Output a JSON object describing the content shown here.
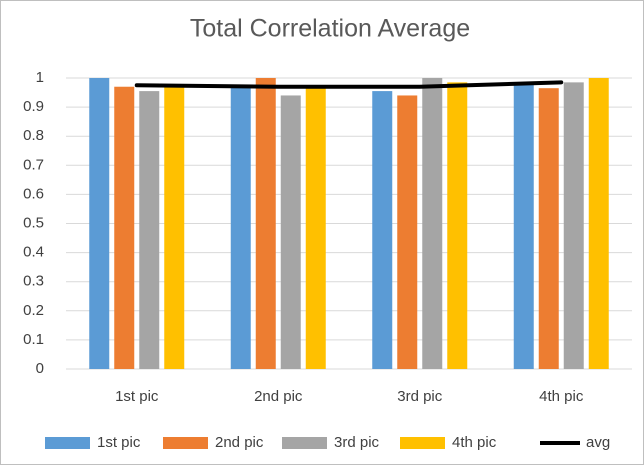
{
  "chart_data": {
    "type": "bar",
    "title": "Total Correlation Average",
    "categories": [
      "1st pic",
      "2nd pic",
      "3rd pic",
      "4th pic"
    ],
    "series": [
      {
        "name": "1st pic",
        "color": "#5b9bd5",
        "values": [
          1.0,
          0.975,
          0.955,
          0.985
        ]
      },
      {
        "name": "2nd pic",
        "color": "#ed7d31",
        "values": [
          0.97,
          1.0,
          0.94,
          0.965
        ]
      },
      {
        "name": "3rd pic",
        "color": "#a5a5a5",
        "values": [
          0.955,
          0.94,
          1.0,
          0.985
        ]
      },
      {
        "name": "4th pic",
        "color": "#ffc000",
        "values": [
          0.975,
          0.97,
          0.985,
          1.0
        ]
      },
      {
        "name": "avg",
        "color": "#000000",
        "type": "line",
        "values": [
          0.975,
          0.97,
          0.97,
          0.985
        ]
      }
    ],
    "ylim": [
      0,
      1
    ],
    "yticks": [
      0,
      0.1,
      0.2,
      0.3,
      0.4,
      0.5,
      0.6,
      0.7,
      0.8,
      0.9,
      1
    ],
    "grid": true,
    "legend": "bottom"
  }
}
